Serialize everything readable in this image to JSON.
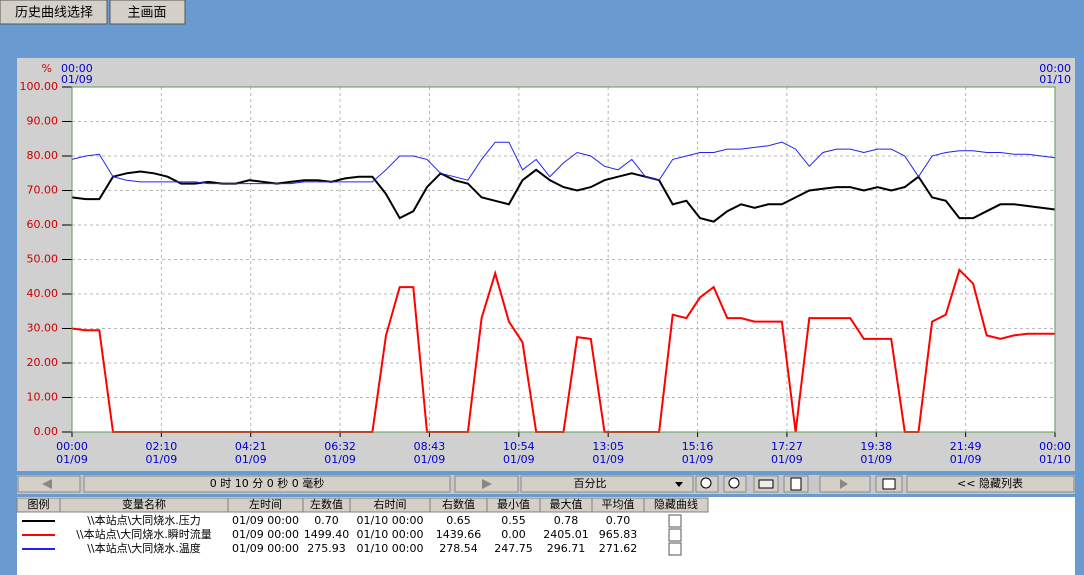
{
  "header": {
    "buttons": [
      "历史曲线选择",
      "主画面"
    ]
  },
  "chart_data": {
    "type": "line",
    "y_unit": "%",
    "ylim": [
      0,
      100
    ],
    "yticks": [
      {
        "value": 0,
        "label": "0.00"
      },
      {
        "value": 10,
        "label": "10.00"
      },
      {
        "value": 20,
        "label": "20.00"
      },
      {
        "value": 30,
        "label": "30.00"
      },
      {
        "value": 40,
        "label": "40.00"
      },
      {
        "value": 50,
        "label": "50.00"
      },
      {
        "value": 60,
        "label": "60.00"
      },
      {
        "value": 70,
        "label": "70.00"
      },
      {
        "value": 80,
        "label": "80.00"
      },
      {
        "value": 90,
        "label": "90.00"
      },
      {
        "value": 100,
        "label": "100.00"
      }
    ],
    "grid": true,
    "x_labels": [
      {
        "time": "00:00",
        "date": "01/09"
      },
      {
        "time": "02:10",
        "date": "01/09"
      },
      {
        "time": "04:21",
        "date": "01/09"
      },
      {
        "time": "06:32",
        "date": "01/09"
      },
      {
        "time": "08:43",
        "date": "01/09"
      },
      {
        "time": "10:54",
        "date": "01/09"
      },
      {
        "time": "13:05",
        "date": "01/09"
      },
      {
        "time": "15:16",
        "date": "01/09"
      },
      {
        "time": "17:27",
        "date": "01/09"
      },
      {
        "time": "19:38",
        "date": "01/09"
      },
      {
        "time": "21:49",
        "date": "01/09"
      },
      {
        "time": "00:00",
        "date": "01/10"
      }
    ],
    "series": [
      {
        "name": "\\\\本站点\\大同烧水.压力",
        "color": "#000000",
        "values": [
          68,
          67.5,
          67.5,
          74,
          75,
          75.5,
          75,
          74,
          72,
          72,
          72.5,
          72,
          72,
          73,
          72.5,
          72,
          72.5,
          73,
          73,
          72.5,
          73.5,
          74,
          74,
          69,
          62,
          64,
          71,
          75,
          73,
          72,
          68,
          67,
          66,
          73,
          76,
          73,
          71,
          70,
          71,
          73,
          74,
          75,
          74,
          73,
          66,
          67,
          62,
          61,
          64,
          66,
          65,
          66,
          66,
          68,
          70,
          70.5,
          71,
          71,
          70,
          71,
          70,
          71,
          74,
          68,
          67,
          62,
          62,
          64,
          66,
          66,
          65.5,
          65,
          64.5
        ]
      },
      {
        "name": "\\\\本站点\\大同烧水.瞬时流量",
        "color": "#ff0000",
        "values": [
          30,
          29.5,
          29.5,
          0,
          0,
          0,
          0,
          0,
          0,
          0,
          0,
          0,
          0,
          0,
          0,
          0,
          0,
          0,
          0,
          0,
          0,
          0,
          0,
          28,
          42,
          42,
          0,
          0,
          0,
          0,
          33,
          46,
          32,
          26,
          0,
          0,
          0,
          27.5,
          27,
          0,
          0,
          0,
          0,
          0,
          34,
          33,
          39,
          42,
          33,
          33,
          32,
          32,
          32,
          0,
          33,
          33,
          33,
          33,
          27,
          27,
          27,
          0,
          0,
          32,
          34,
          47,
          43,
          28,
          27,
          28,
          28.5,
          28.5,
          28.5
        ]
      },
      {
        "name": "\\\\本站点\\大同烧水.温度",
        "color": "#2222ee",
        "values": [
          79,
          80,
          80.5,
          74,
          73,
          72.5,
          72.5,
          72.5,
          72.5,
          72.5,
          72,
          72,
          72,
          72,
          72,
          72,
          72,
          72.5,
          72.5,
          72.5,
          72.5,
          72.5,
          72.5,
          76,
          80,
          80,
          79,
          75,
          74,
          73,
          79,
          84,
          84,
          76,
          79,
          74,
          78,
          81,
          80,
          77,
          76,
          79,
          74,
          73,
          79,
          80,
          81,
          81,
          82,
          82,
          82.5,
          83,
          84,
          82,
          77,
          81,
          82,
          82,
          81,
          82,
          82,
          80,
          74,
          80,
          81,
          81.5,
          81.5,
          81,
          81,
          80.5,
          80.5,
          80,
          79.5
        ]
      }
    ]
  },
  "toolbar": {
    "interval": "0 时 10 分 0 秒 0 毫秒",
    "mode": "百分比",
    "hide_list": "<< 隐藏列表"
  },
  "table": {
    "columns": [
      "图例",
      "变量名称",
      "左时间",
      "左数值",
      "右时间",
      "右数值",
      "最小值",
      "最大值",
      "平均值",
      "隐藏曲线"
    ],
    "rows": [
      [
        "01/09 00:00",
        "0.70",
        "01/10 00:00",
        "0.65",
        "0.55",
        "0.78",
        "0.70"
      ],
      [
        "01/09 00:00",
        "1499.40",
        "01/10 00:00",
        "1439.66",
        "0.00",
        "2405.01",
        "965.83"
      ],
      [
        "01/09 00:00",
        "275.93",
        "01/10 00:00",
        "278.54",
        "247.75",
        "296.71",
        "271.62"
      ]
    ]
  }
}
